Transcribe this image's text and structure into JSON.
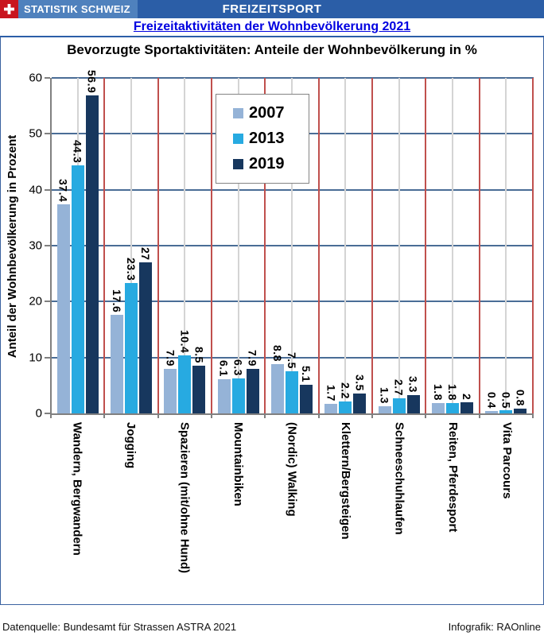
{
  "header": {
    "logo_label": "STATISTIK SCHWEIZ",
    "bar_title": "FREIZEITSPORT",
    "subtitle_link": "Freizeitaktivitäten der Wohnbevölkerung 2021"
  },
  "footer": {
    "source": "Datenquelle: Bundesamt für Strassen ASTRA 2021",
    "credit": "Infografik: RAOnline"
  },
  "colors": {
    "header_bar": "#2B5EA7",
    "logo_box": "#4F81BD",
    "swiss_red": "#C9151E",
    "link_blue": "#0000E0",
    "grid_navy": "#4A6D96",
    "separator_red": "#C0504D",
    "minor_gridline_gray": "#D4D4D4",
    "series_2007": "#95B3D7",
    "series_2013": "#27AAE1",
    "series_2019": "#17375E"
  },
  "chart_data": {
    "type": "bar",
    "title": "Bevorzugte Sportaktivitäten: Anteile der Wohnbevölkerung in %",
    "xlabel": "",
    "ylabel": "Anteil der Wohnbevölkerung in Prozent",
    "ylim": [
      0,
      60
    ],
    "ytick_step": 10,
    "yticks": [
      0,
      10,
      20,
      30,
      40,
      50,
      60
    ],
    "grid": true,
    "legend_position": "inside-upper-left",
    "categories": [
      "Wandern, Bergwandern",
      "Jogging",
      "Spazieren (mit/ohne Hund)",
      "Mountainbiken",
      "(Nordic) Walking",
      "Klettern/Bergsteigen",
      "Schneeschuhlaufen",
      "Reiten, Pferdesport",
      "Vita Parcours"
    ],
    "series": [
      {
        "name": "2007",
        "color": "#95B3D7",
        "values": [
          37.4,
          17.6,
          7.9,
          6.1,
          8.8,
          1.7,
          1.3,
          1.8,
          0.4
        ]
      },
      {
        "name": "2013",
        "color": "#27AAE1",
        "values": [
          44.3,
          23.3,
          10.4,
          6.3,
          7.5,
          2.2,
          2.7,
          1.8,
          0.5
        ]
      },
      {
        "name": "2019",
        "color": "#17375E",
        "values": [
          56.9,
          27,
          8.5,
          7.9,
          5.1,
          3.5,
          3.3,
          2,
          0.8
        ]
      }
    ]
  }
}
